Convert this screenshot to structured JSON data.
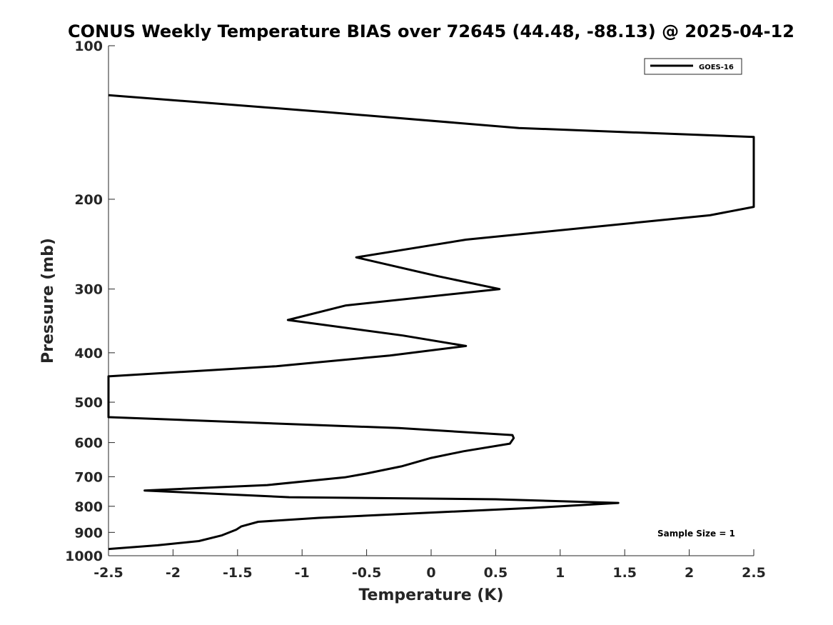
{
  "chart_data": {
    "type": "line",
    "title": "CONUS Weekly Temperature BIAS over 72645 (44.48, -88.13) @ 2025-04-12",
    "xlabel": "Temperature (K)",
    "ylabel": "Pressure (mb)",
    "xlim": [
      -2.5,
      2.5
    ],
    "ylim": [
      1000,
      100
    ],
    "y_scale": "log",
    "y_reversed": true,
    "grid": false,
    "legend_position": "top-right",
    "x_ticks": [
      "-2.5",
      "-2",
      "-1.5",
      "-1",
      "-0.5",
      "0",
      "0.5",
      "1",
      "1.5",
      "2",
      "2.5"
    ],
    "x_tick_values": [
      -2.5,
      -2,
      -1.5,
      -1,
      -0.5,
      0,
      0.5,
      1,
      1.5,
      2,
      2.5
    ],
    "y_ticks": [
      "100",
      "200",
      "300",
      "400",
      "500",
      "600",
      "700",
      "800",
      "900",
      "1000"
    ],
    "y_tick_values": [
      100,
      200,
      300,
      400,
      500,
      600,
      700,
      800,
      900,
      1000
    ],
    "annotation": "Sample Size = 1",
    "series": [
      {
        "name": "GOES-16",
        "color": "#000000",
        "points": [
          [
            -2.5,
            125
          ],
          [
            -0.8,
            135
          ],
          [
            0.68,
            145
          ],
          [
            2.5,
            151
          ],
          [
            2.5,
            207
          ],
          [
            2.16,
            215
          ],
          [
            0.27,
            240
          ],
          [
            -0.58,
            260
          ],
          [
            0.05,
            283
          ],
          [
            0.53,
            300
          ],
          [
            -0.66,
            323
          ],
          [
            -1.11,
            345
          ],
          [
            -0.22,
            370
          ],
          [
            0.27,
            388
          ],
          [
            -0.32,
            405
          ],
          [
            -1.2,
            425
          ],
          [
            -2.5,
            445
          ],
          [
            -2.5,
            535
          ],
          [
            -1.5,
            547
          ],
          [
            -0.25,
            562
          ],
          [
            0.63,
            580
          ],
          [
            0.64,
            588
          ],
          [
            0.61,
            603
          ],
          [
            0.25,
            624
          ],
          [
            0.0,
            643
          ],
          [
            -0.23,
            668
          ],
          [
            -0.5,
            690
          ],
          [
            -0.67,
            702
          ],
          [
            -1.27,
            727
          ],
          [
            -2.22,
            745
          ],
          [
            -1.1,
            768
          ],
          [
            0.5,
            775
          ],
          [
            1.45,
            788
          ],
          [
            0.78,
            806
          ],
          [
            -0.22,
            828
          ],
          [
            -0.87,
            843
          ],
          [
            -1.34,
            858
          ],
          [
            -1.47,
            876
          ],
          [
            -1.51,
            889
          ],
          [
            -1.62,
            912
          ],
          [
            -1.8,
            936
          ],
          [
            -2.12,
            954
          ],
          [
            -2.5,
            970
          ]
        ]
      }
    ]
  }
}
